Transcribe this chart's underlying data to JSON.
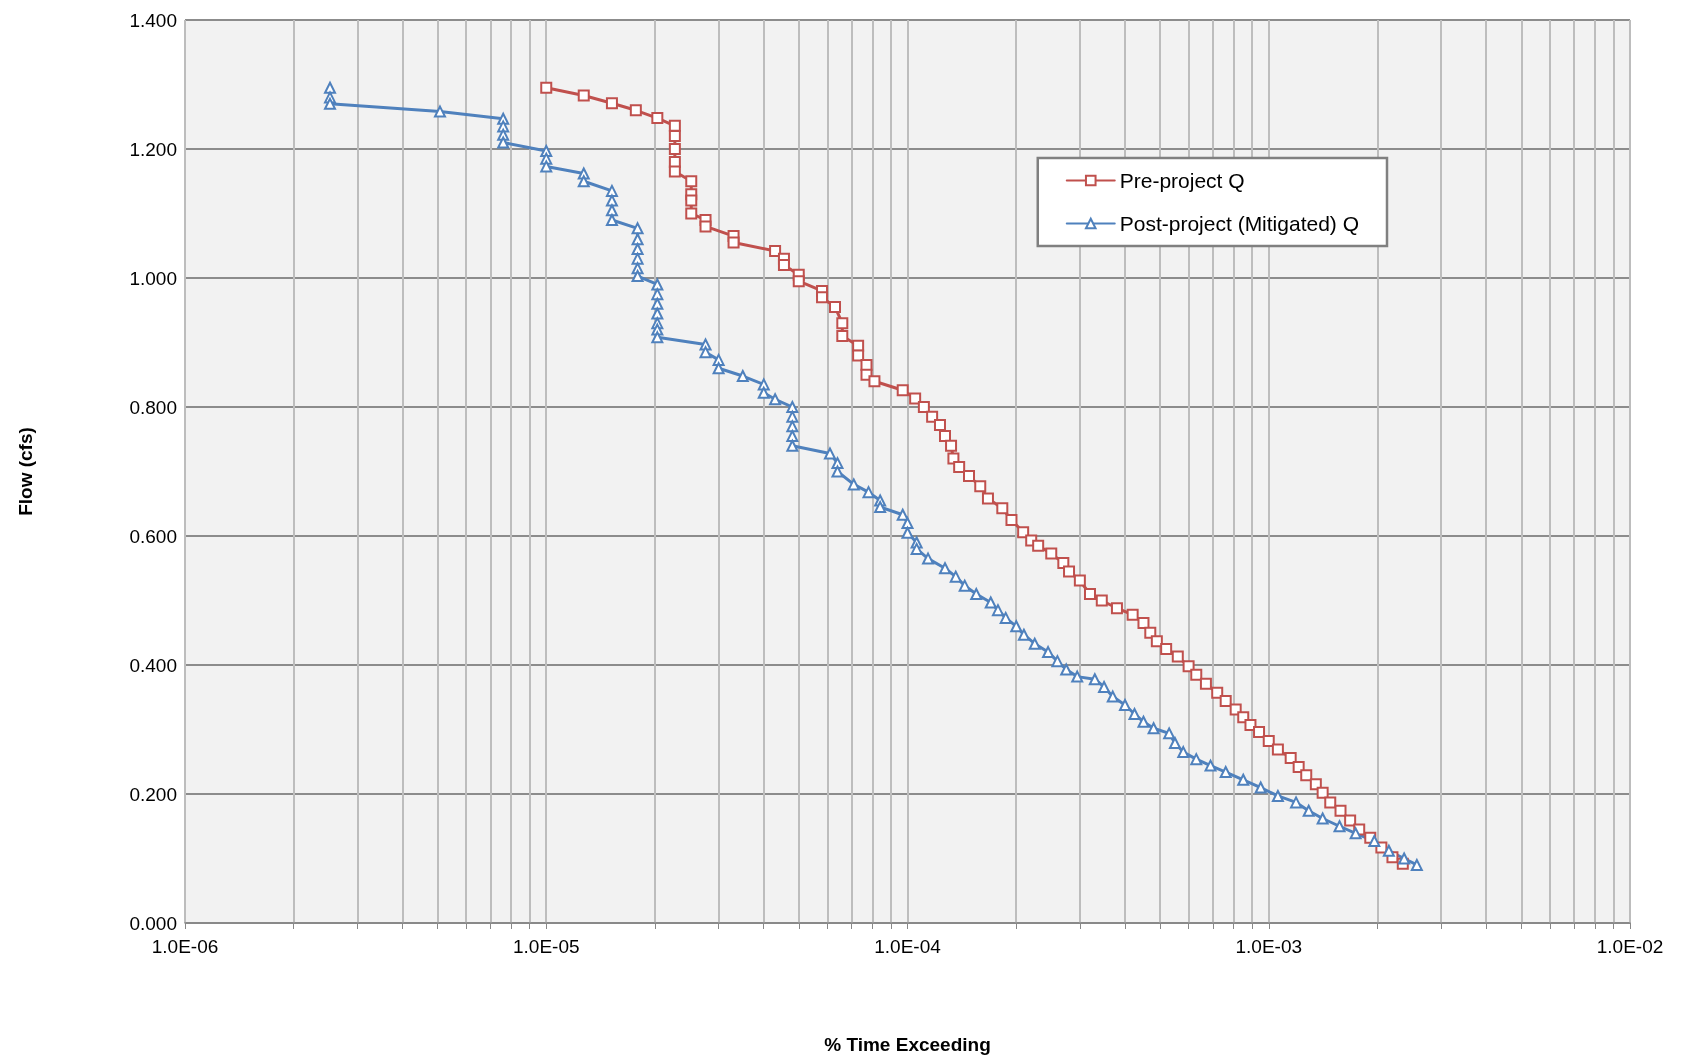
{
  "chart_data": {
    "type": "line",
    "xlabel": "% Time Exceeding",
    "ylabel": "Flow (cfs)",
    "log": "x",
    "grid": true,
    "legend": "top right",
    "line_style": "solid",
    "xlim": [
      1e-06,
      0.01
    ],
    "xticks": [
      {
        "value": 1e-06,
        "label": "1.0E-06"
      },
      {
        "value": 2e-06,
        "label": null
      },
      {
        "value": 3e-06,
        "label": null
      },
      {
        "value": 4e-06,
        "label": null
      },
      {
        "value": 5e-06,
        "label": null
      },
      {
        "value": 6e-06,
        "label": null
      },
      {
        "value": 7e-06,
        "label": null
      },
      {
        "value": 8e-06,
        "label": null
      },
      {
        "value": 9e-06,
        "label": null
      },
      {
        "value": 1e-05,
        "label": "1.0E-05"
      },
      {
        "value": 2e-05,
        "label": null
      },
      {
        "value": 3e-05,
        "label": null
      },
      {
        "value": 4e-05,
        "label": null
      },
      {
        "value": 5e-05,
        "label": null
      },
      {
        "value": 6e-05,
        "label": null
      },
      {
        "value": 7e-05,
        "label": null
      },
      {
        "value": 8e-05,
        "label": null
      },
      {
        "value": 9e-05,
        "label": null
      },
      {
        "value": 0.0001,
        "label": "1.0E-04"
      },
      {
        "value": 0.0002,
        "label": null
      },
      {
        "value": 0.0003,
        "label": null
      },
      {
        "value": 0.0004,
        "label": null
      },
      {
        "value": 0.0005,
        "label": null
      },
      {
        "value": 0.0006,
        "label": null
      },
      {
        "value": 0.0007,
        "label": null
      },
      {
        "value": 0.0008,
        "label": null
      },
      {
        "value": 0.0009,
        "label": null
      },
      {
        "value": 0.001,
        "label": "1.0E-03"
      },
      {
        "value": 0.002,
        "label": null
      },
      {
        "value": 0.003,
        "label": null
      },
      {
        "value": 0.004,
        "label": null
      },
      {
        "value": 0.005,
        "label": null
      },
      {
        "value": 0.006,
        "label": null
      },
      {
        "value": 0.007,
        "label": null
      },
      {
        "value": 0.008,
        "label": null
      },
      {
        "value": 0.009,
        "label": null
      },
      {
        "value": 0.01,
        "label": "1.0E-02"
      }
    ],
    "ylim": [
      0,
      1.4
    ],
    "yticks": [
      {
        "value": 0,
        "label": "0.000"
      },
      {
        "value": 0.2,
        "label": "0.200"
      },
      {
        "value": 0.4,
        "label": "0.400"
      },
      {
        "value": 0.6,
        "label": "0.600"
      },
      {
        "value": 0.8,
        "label": "0.800"
      },
      {
        "value": 1.0,
        "label": "1.000"
      },
      {
        "value": 1.2,
        "label": "1.200"
      },
      {
        "value": 1.4,
        "label": "1.400"
      }
    ],
    "series": [
      {
        "name": "Pre-project Q",
        "color": "#c0504d",
        "marker": "square",
        "x": [
          1e-05,
          1.27e-05,
          1.52e-05,
          1.77e-05,
          2.03e-05,
          2.27e-05,
          2.27e-05,
          2.27e-05,
          2.27e-05,
          2.27e-05,
          2.52e-05,
          2.52e-05,
          2.52e-05,
          2.52e-05,
          2.76e-05,
          2.76e-05,
          3.3e-05,
          3.3e-05,
          4.3e-05,
          4.55e-05,
          4.55e-05,
          5e-05,
          5e-05,
          5.8e-05,
          5.8e-05,
          6.3e-05,
          6.6e-05,
          6.6e-05,
          7.3e-05,
          7.3e-05,
          7.7e-05,
          7.7e-05,
          8.1e-05,
          9.7e-05,
          0.000105,
          0.000111,
          0.000117,
          0.000123,
          0.000127,
          0.000132,
          0.000134,
          0.000139,
          0.000148,
          0.000159,
          0.000167,
          0.000183,
          0.000194,
          0.000209,
          0.00022,
          0.00023,
          0.00025,
          0.00027,
          0.00028,
          0.0003,
          0.00032,
          0.000345,
          0.00038,
          0.00042,
          0.00045,
          0.00047,
          0.00049,
          0.00052,
          0.00056,
          0.0006,
          0.00063,
          0.00067,
          0.00072,
          0.00076,
          0.00081,
          0.00085,
          0.00089,
          0.00094,
          0.001,
          0.00106,
          0.00115,
          0.00121,
          0.00127,
          0.00135,
          0.00141,
          0.00148,
          0.00158,
          0.00168,
          0.00178,
          0.00191,
          0.00205,
          0.0022,
          0.00235
        ],
        "values": [
          1.295,
          1.283,
          1.271,
          1.26,
          1.248,
          1.236,
          1.22,
          1.2,
          1.18,
          1.165,
          1.15,
          1.13,
          1.12,
          1.1,
          1.09,
          1.08,
          1.065,
          1.055,
          1.042,
          1.03,
          1.02,
          1.005,
          0.995,
          0.98,
          0.97,
          0.955,
          0.93,
          0.91,
          0.895,
          0.88,
          0.865,
          0.85,
          0.84,
          0.826,
          0.813,
          0.8,
          0.785,
          0.772,
          0.755,
          0.74,
          0.72,
          0.707,
          0.693,
          0.677,
          0.658,
          0.643,
          0.625,
          0.606,
          0.593,
          0.585,
          0.573,
          0.558,
          0.545,
          0.531,
          0.51,
          0.5,
          0.488,
          0.478,
          0.465,
          0.45,
          0.437,
          0.425,
          0.413,
          0.398,
          0.385,
          0.371,
          0.357,
          0.344,
          0.331,
          0.319,
          0.307,
          0.296,
          0.282,
          0.269,
          0.256,
          0.242,
          0.229,
          0.215,
          0.202,
          0.187,
          0.174,
          0.159,
          0.145,
          0.132,
          0.117,
          0.102,
          0.092
        ]
      },
      {
        "name": "Post-project (Mitigated) Q",
        "color": "#4f81bd",
        "marker": "triangle",
        "x": [
          2.52e-06,
          2.52e-06,
          2.52e-06,
          5.08e-06,
          7.6e-06,
          7.6e-06,
          7.6e-06,
          7.6e-06,
          1e-05,
          1e-05,
          1e-05,
          1.27e-05,
          1.27e-05,
          1.52e-05,
          1.52e-05,
          1.52e-05,
          1.52e-05,
          1.79e-05,
          1.79e-05,
          1.79e-05,
          1.79e-05,
          1.79e-05,
          1.79e-05,
          2.03e-05,
          2.03e-05,
          2.03e-05,
          2.03e-05,
          2.03e-05,
          2.03e-05,
          2.03e-05,
          2.76e-05,
          2.76e-05,
          3e-05,
          3e-05,
          3.5e-05,
          4e-05,
          4e-05,
          4.3e-05,
          4.8e-05,
          4.8e-05,
          4.8e-05,
          4.8e-05,
          4.8e-05,
          6.1e-05,
          6.4e-05,
          6.4e-05,
          7.1e-05,
          7.8e-05,
          8.4e-05,
          8.4e-05,
          9.7e-05,
          0.0001,
          0.0001,
          0.000106,
          0.000106,
          0.000114,
          0.000127,
          0.000136,
          0.000144,
          0.000155,
          0.00017,
          0.000178,
          0.000187,
          0.0002,
          0.00021,
          0.000225,
          0.000245,
          0.00026,
          0.000275,
          0.000295,
          0.00033,
          0.00035,
          0.00037,
          0.0004,
          0.000425,
          0.00045,
          0.00048,
          0.00053,
          0.00055,
          0.00058,
          0.00063,
          0.00069,
          0.00076,
          0.00085,
          0.00095,
          0.00106,
          0.00119,
          0.00129,
          0.00141,
          0.00157,
          0.00174,
          0.00196,
          0.00215,
          0.00237,
          0.00257
        ],
        "values": [
          1.295,
          1.28,
          1.27,
          1.258,
          1.247,
          1.235,
          1.222,
          1.21,
          1.197,
          1.185,
          1.173,
          1.162,
          1.15,
          1.135,
          1.12,
          1.105,
          1.09,
          1.077,
          1.06,
          1.045,
          1.03,
          1.015,
          1.003,
          0.99,
          0.975,
          0.96,
          0.945,
          0.93,
          0.92,
          0.908,
          0.897,
          0.885,
          0.873,
          0.86,
          0.848,
          0.835,
          0.822,
          0.812,
          0.8,
          0.785,
          0.77,
          0.755,
          0.74,
          0.728,
          0.713,
          0.7,
          0.68,
          0.668,
          0.655,
          0.645,
          0.633,
          0.62,
          0.605,
          0.59,
          0.58,
          0.565,
          0.55,
          0.537,
          0.523,
          0.51,
          0.497,
          0.485,
          0.473,
          0.46,
          0.447,
          0.433,
          0.42,
          0.406,
          0.393,
          0.382,
          0.378,
          0.366,
          0.351,
          0.338,
          0.324,
          0.312,
          0.302,
          0.294,
          0.279,
          0.265,
          0.254,
          0.244,
          0.234,
          0.222,
          0.21,
          0.197,
          0.187,
          0.174,
          0.162,
          0.15,
          0.139,
          0.127,
          0.112,
          0.1,
          0.09
        ]
      }
    ]
  }
}
